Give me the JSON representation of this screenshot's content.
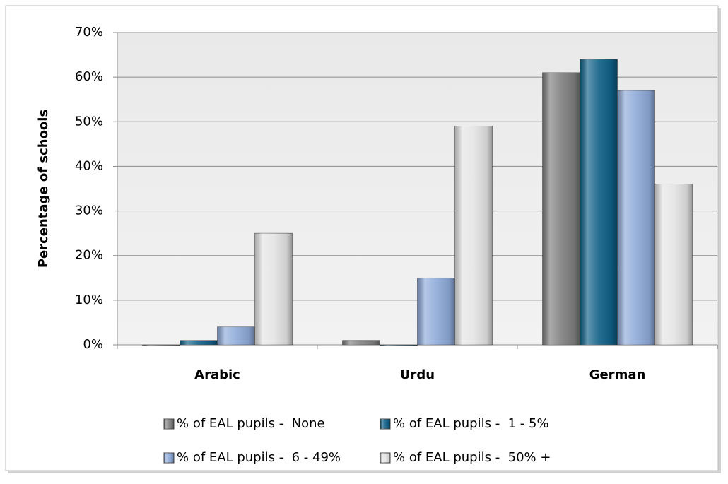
{
  "chart_data": {
    "type": "bar",
    "y_label": "Percentage of schools",
    "categories": [
      "Arabic",
      "Urdu",
      "German"
    ],
    "series": [
      {
        "name": "% of EAL pupils -  None",
        "color": "#7f7f7f",
        "values": [
          0,
          1,
          61
        ]
      },
      {
        "name": "% of EAL pupils -  1 - 5%",
        "color": "#0e5f86",
        "values": [
          1,
          0,
          64
        ]
      },
      {
        "name": "% of EAL pupils -  6 - 49%",
        "color": "#8eaad9",
        "values": [
          4,
          15,
          57
        ]
      },
      {
        "name": "% of EAL pupils -  50% +",
        "color": "#e4e4e4",
        "values": [
          25,
          49,
          36
        ]
      }
    ],
    "ylim": [
      0,
      70
    ],
    "yticks": [
      {
        "value": 0,
        "label": "0%"
      },
      {
        "value": 10,
        "label": "10%"
      },
      {
        "value": 20,
        "label": "20%"
      },
      {
        "value": 30,
        "label": "30%"
      },
      {
        "value": 40,
        "label": "40%"
      },
      {
        "value": 50,
        "label": "50%"
      },
      {
        "value": 60,
        "label": "60%"
      },
      {
        "value": 70,
        "label": "70%"
      }
    ],
    "grid": true,
    "legend": "bottom"
  }
}
